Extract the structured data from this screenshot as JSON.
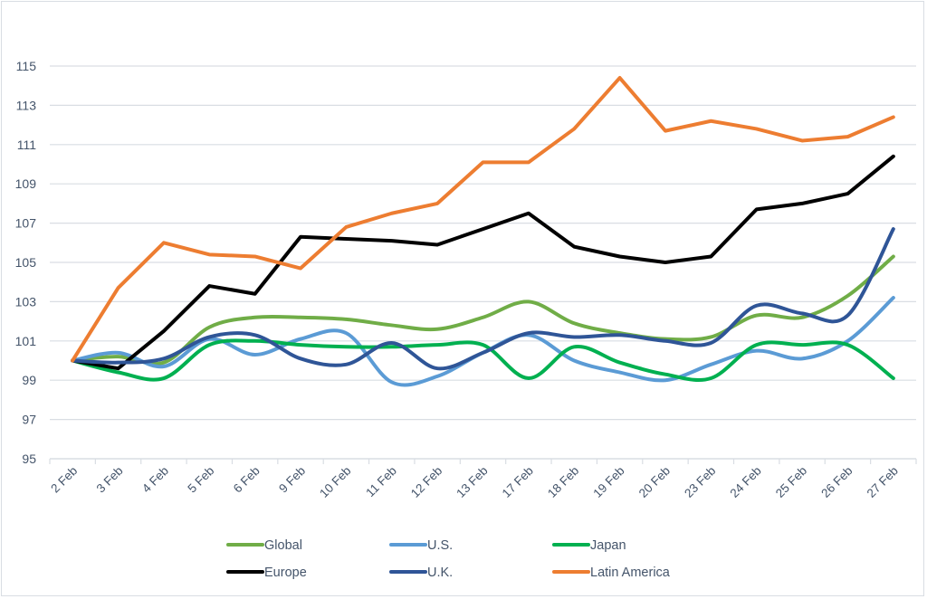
{
  "chart_data": {
    "type": "line",
    "title": "",
    "xlabel": "",
    "ylabel": "",
    "ylim": [
      95,
      115
    ],
    "yticks": [
      95,
      97,
      99,
      101,
      103,
      105,
      107,
      109,
      111,
      113,
      115
    ],
    "grid": true,
    "legend_position": "bottom",
    "categories": [
      "2 Feb",
      "3 Feb",
      "4 Feb",
      "5 Feb",
      "6 Feb",
      "9 Feb",
      "10 Feb",
      "11 Feb",
      "12 Feb",
      "13 Feb",
      "17 Feb",
      "18 Feb",
      "19 Feb",
      "20 Feb",
      "23 Feb",
      "24 Feb",
      "25 Feb",
      "26 Feb",
      "27 Feb"
    ],
    "series": [
      {
        "name": "Global",
        "color": "#70ad47",
        "smooth": true,
        "values": [
          100,
          100.2,
          99.9,
          101.7,
          102.2,
          102.2,
          102.1,
          101.8,
          101.6,
          102.2,
          103.0,
          101.9,
          101.4,
          101.1,
          101.2,
          102.3,
          102.2,
          103.3,
          105.3
        ]
      },
      {
        "name": "U.S.",
        "color": "#5b9bd5",
        "smooth": true,
        "values": [
          100,
          100.4,
          99.7,
          101.1,
          100.3,
          101.1,
          101.4,
          98.9,
          99.2,
          100.4,
          101.3,
          100.0,
          99.4,
          99.0,
          99.8,
          100.5,
          100.1,
          101.0,
          103.2
        ]
      },
      {
        "name": "Japan",
        "color": "#00b050",
        "smooth": true,
        "values": [
          100,
          99.4,
          99.1,
          100.8,
          101.0,
          100.8,
          100.7,
          100.7,
          100.8,
          100.8,
          99.1,
          100.7,
          99.9,
          99.3,
          99.1,
          100.8,
          100.8,
          100.8,
          99.1
        ]
      },
      {
        "name": "Europe",
        "color": "#000000",
        "smooth": false,
        "values": [
          100,
          99.6,
          101.5,
          103.8,
          103.4,
          106.3,
          106.2,
          106.1,
          105.9,
          106.7,
          107.5,
          105.8,
          105.3,
          105.0,
          105.3,
          107.7,
          108.0,
          108.5,
          110.4
        ]
      },
      {
        "name": "U.K.",
        "color": "#2f5597",
        "smooth": true,
        "values": [
          100,
          99.9,
          100.1,
          101.2,
          101.3,
          100.1,
          99.8,
          100.9,
          99.6,
          100.4,
          101.4,
          101.2,
          101.3,
          101.0,
          100.9,
          102.8,
          102.4,
          102.3,
          106.7
        ]
      },
      {
        "name": "Latin America",
        "color": "#ed7d31",
        "smooth": false,
        "values": [
          100,
          103.7,
          106.0,
          105.4,
          105.3,
          104.7,
          106.8,
          107.5,
          108.0,
          110.1,
          110.1,
          111.8,
          114.4,
          111.7,
          112.2,
          111.8,
          111.2,
          111.4,
          112.4
        ]
      }
    ]
  }
}
